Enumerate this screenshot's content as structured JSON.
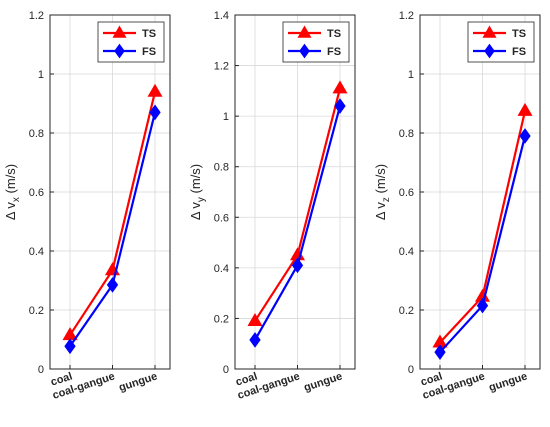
{
  "chart_data": [
    {
      "type": "line",
      "categories": [
        "coal",
        "coal-gangue",
        "gungue"
      ],
      "ylabel_prefix": "Δ v",
      "ylabel_subscript": "x",
      "ylabel_unit": "(m/s)",
      "ylim": [
        0,
        1.2
      ],
      "yticks": [
        "0",
        "0.2",
        "0.4",
        "0.6",
        "0.8",
        "1",
        "1.2"
      ],
      "grid": true,
      "legend_position": "top-right",
      "series": [
        {
          "name": "TS",
          "color": "#ff0000",
          "marker": "triangle-up",
          "values": [
            0.115,
            0.335,
            0.94
          ]
        },
        {
          "name": "FS",
          "color": "#0000ff",
          "marker": "diamond",
          "values": [
            0.077,
            0.285,
            0.87
          ]
        }
      ]
    },
    {
      "type": "line",
      "categories": [
        "coal",
        "coal-gangue",
        "gungue"
      ],
      "ylabel_prefix": "Δ v",
      "ylabel_subscript": "y",
      "ylabel_unit": "(m/s)",
      "ylim": [
        0,
        1.4
      ],
      "yticks": [
        "0",
        "0.2",
        "0.4",
        "0.6",
        "0.8",
        "1",
        "1.2",
        "1.4"
      ],
      "grid": true,
      "legend_position": "top-right",
      "series": [
        {
          "name": "TS",
          "color": "#ff0000",
          "marker": "triangle-up",
          "values": [
            0.19,
            0.45,
            1.11
          ]
        },
        {
          "name": "FS",
          "color": "#0000ff",
          "marker": "diamond",
          "values": [
            0.115,
            0.41,
            1.04
          ]
        }
      ]
    },
    {
      "type": "line",
      "categories": [
        "coal",
        "coal-gangue",
        "gungue"
      ],
      "ylabel_prefix": "Δ v",
      "ylabel_subscript": "z",
      "ylabel_unit": "(m/s)",
      "ylim": [
        0,
        1.2
      ],
      "yticks": [
        "0",
        "0.2",
        "0.4",
        "0.6",
        "0.8",
        "1",
        "1.2"
      ],
      "grid": true,
      "legend_position": "top-right",
      "series": [
        {
          "name": "TS",
          "color": "#ff0000",
          "marker": "triangle-up",
          "values": [
            0.09,
            0.245,
            0.875
          ]
        },
        {
          "name": "FS",
          "color": "#0000ff",
          "marker": "diamond",
          "values": [
            0.057,
            0.215,
            0.79
          ]
        }
      ]
    }
  ]
}
